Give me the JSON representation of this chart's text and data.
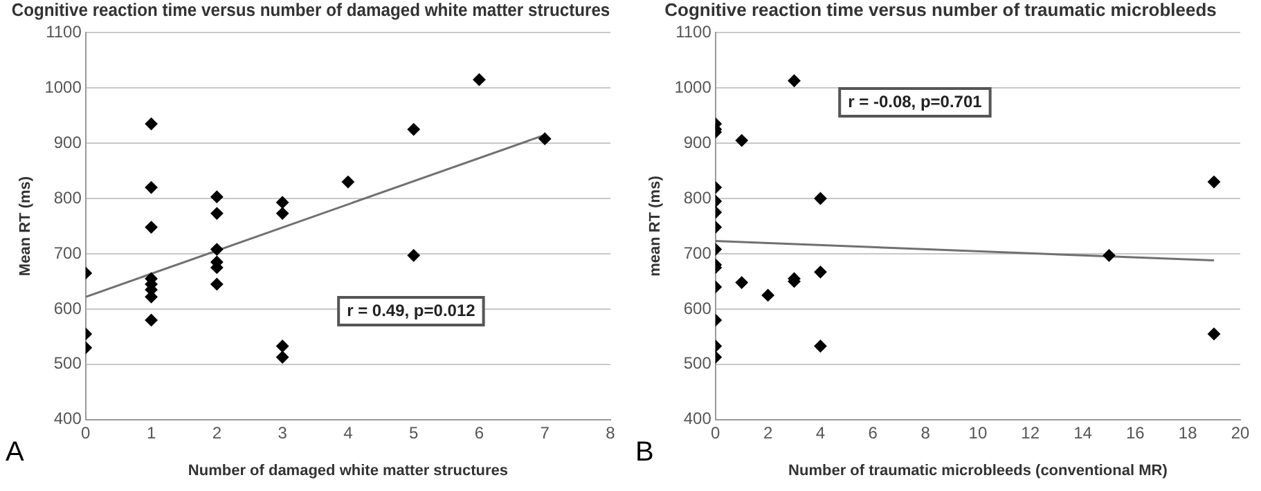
{
  "chart_data": [
    {
      "type": "scatter",
      "title": "Cognitive reaction time versus number of damaged white matter structures",
      "xlabel": "Number of damaged white matter structures",
      "ylabel": "Mean RT (ms)",
      "annotations": [
        "r = 0.49, p=0.012",
        "A"
      ],
      "xlim": [
        0,
        8
      ],
      "xticks": [
        0,
        1,
        2,
        3,
        4,
        5,
        6,
        7,
        8
      ],
      "ylim": [
        400,
        1100
      ],
      "yticks": [
        400,
        500,
        600,
        700,
        800,
        900,
        1000,
        1100
      ],
      "grid": "y",
      "legend": false,
      "series": [
        {
          "marker": "diamond",
          "color": "#000000",
          "x": [
            0,
            0,
            0,
            1,
            1,
            1,
            1,
            1,
            1,
            1,
            1,
            2,
            2,
            2,
            2,
            2,
            2,
            3,
            3,
            3,
            3,
            4,
            5,
            5,
            6,
            7
          ],
          "values": [
            665,
            555,
            530,
            935,
            820,
            748,
            655,
            645,
            635,
            622,
            580,
            803,
            773,
            708,
            685,
            675,
            645,
            793,
            773,
            533,
            513,
            830,
            925,
            697,
            1015,
            908
          ]
        },
        {
          "type": "line",
          "marker": "none",
          "color": "#707070",
          "x": [
            0,
            7
          ],
          "values": [
            622,
            915
          ]
        }
      ]
    },
    {
      "type": "scatter",
      "title": "Cognitive reaction time versus number of traumatic microbleeds",
      "xlabel": "Number of traumatic microbleeds (conventional MR)",
      "ylabel": "mean RT (ms)",
      "annotations": [
        "r = -0.08, p=0.701",
        "B"
      ],
      "xlim": [
        0,
        20
      ],
      "xticks": [
        0,
        2,
        4,
        6,
        8,
        10,
        12,
        14,
        16,
        18,
        20
      ],
      "ylim": [
        400,
        1100
      ],
      "yticks": [
        400,
        500,
        600,
        700,
        800,
        900,
        1000,
        1100
      ],
      "grid": "y",
      "legend": false,
      "series": [
        {
          "marker": "diamond",
          "color": "#000000",
          "x": [
            0,
            0,
            0,
            0,
            0,
            0,
            0,
            0,
            0,
            0,
            0,
            0,
            0,
            0,
            1,
            1,
            2,
            3,
            3,
            3,
            4,
            4,
            4,
            15,
            19,
            19
          ],
          "values": [
            935,
            925,
            920,
            820,
            795,
            775,
            748,
            708,
            680,
            675,
            640,
            580,
            533,
            513,
            905,
            648,
            625,
            1013,
            655,
            650,
            800,
            667,
            533,
            697,
            830,
            555
          ]
        },
        {
          "type": "line",
          "marker": "none",
          "color": "#707070",
          "x": [
            0,
            19
          ],
          "values": [
            723,
            688
          ]
        }
      ]
    }
  ]
}
